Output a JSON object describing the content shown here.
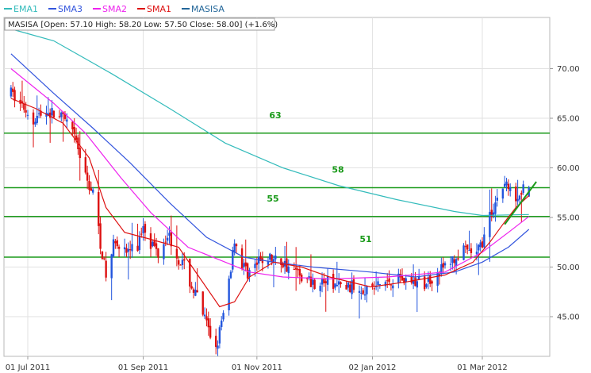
{
  "legend": [
    {
      "label": "EMA1",
      "color": "#33bbbb"
    },
    {
      "label": "SMA3",
      "color": "#3355dd"
    },
    {
      "label": "SMA2",
      "color": "#ee22ee"
    },
    {
      "label": "SMA1",
      "color": "#dd1111"
    },
    {
      "label": "MASISA",
      "color": "#226699"
    }
  ],
  "info_box": {
    "text": "MASISA [Open: 57.10  High: 58.20  Low: 57.50  Close: 58.00] (+1.6%)"
  },
  "chart_data": {
    "type": "candlestick",
    "symbol": "MASISA",
    "ylim": [
      41,
      76
    ],
    "y_ticks": [
      "45.00",
      "50.00",
      "55.00",
      "60.00",
      "65.00",
      "70.00"
    ],
    "x_ticks": [
      "01 Jul 2011",
      "01 Sep 2011",
      "01 Nov 2011",
      "02 Jan 2012",
      "01 Mar 2012"
    ],
    "date_range": [
      "2011-06-22",
      "2012-03-26"
    ],
    "last_bar": {
      "open": 57.1,
      "high": 58.2,
      "low": 57.5,
      "close": 58.0,
      "change_pct": 1.6
    },
    "horizontal_levels": [
      {
        "label": "63",
        "value": 63.5,
        "color": "#1a9a1a"
      },
      {
        "label": "58",
        "value": 58.0,
        "color": "#1a9a1a"
      },
      {
        "label": "55",
        "value": 55.1,
        "color": "#1a9a1a"
      },
      {
        "label": "51",
        "value": 51.0,
        "color": "#1a9a1a"
      }
    ],
    "trendline": {
      "start": [
        "2012-03-13",
        54.3
      ],
      "end": [
        "2012-03-30",
        58.6
      ],
      "color": "#1a9a1a"
    },
    "price_path": [
      [
        "2011-06-22",
        67.5
      ],
      [
        "2011-06-28",
        66.3
      ],
      [
        "2011-07-04",
        65.0
      ],
      [
        "2011-07-11",
        65.7
      ],
      [
        "2011-07-18",
        65.2
      ],
      [
        "2011-07-22",
        64.5
      ],
      [
        "2011-07-27",
        62.5
      ],
      [
        "2011-08-01",
        59.0
      ],
      [
        "2011-08-05",
        57.5
      ],
      [
        "2011-08-09",
        52.5
      ],
      [
        "2011-08-12",
        49.0
      ],
      [
        "2011-08-17",
        53.0
      ],
      [
        "2011-08-22",
        51.5
      ],
      [
        "2011-08-29",
        52.0
      ],
      [
        "2011-09-01",
        54.5
      ],
      [
        "2011-09-05",
        52.5
      ],
      [
        "2011-09-09",
        51.5
      ],
      [
        "2011-09-14",
        53.5
      ],
      [
        "2011-09-19",
        51.2
      ],
      [
        "2011-09-23",
        50.0
      ],
      [
        "2011-09-27",
        48.0
      ],
      [
        "2011-10-01",
        46.5
      ],
      [
        "2011-10-06",
        43.5
      ],
      [
        "2011-10-10",
        42.0
      ],
      [
        "2011-10-14",
        45.0
      ],
      [
        "2011-10-18",
        50.0
      ],
      [
        "2011-10-20",
        53.0
      ],
      [
        "2011-10-23",
        50.5
      ],
      [
        "2011-10-27",
        49.5
      ],
      [
        "2011-11-01",
        50.2
      ],
      [
        "2011-11-06",
        51.0
      ],
      [
        "2011-11-14",
        50.5
      ],
      [
        "2011-11-22",
        49.5
      ],
      [
        "2011-11-30",
        48.5
      ],
      [
        "2011-12-08",
        48.5
      ],
      [
        "2011-12-16",
        48.0
      ],
      [
        "2011-12-25",
        48.0
      ],
      [
        "2012-01-02",
        47.8
      ],
      [
        "2012-01-09",
        48.5
      ],
      [
        "2012-01-16",
        49.0
      ],
      [
        "2012-01-23",
        48.5
      ],
      [
        "2012-01-30",
        48.3
      ],
      [
        "2012-02-06",
        49.5
      ],
      [
        "2012-02-13",
        50.5
      ],
      [
        "2012-02-20",
        51.5
      ],
      [
        "2012-02-27",
        51.3
      ],
      [
        "2012-03-02",
        53.0
      ],
      [
        "2012-03-05",
        55.0
      ],
      [
        "2012-03-08",
        56.5
      ],
      [
        "2012-03-11",
        58.0
      ],
      [
        "2012-03-14",
        58.5
      ],
      [
        "2012-03-17",
        57.0
      ],
      [
        "2012-03-20",
        57.5
      ],
      [
        "2012-03-23",
        57.8
      ],
      [
        "2012-03-26",
        58.0
      ]
    ],
    "series": [
      {
        "name": "EMA1",
        "color": "#33bbbb",
        "points": [
          [
            "2011-06-22",
            74.0
          ],
          [
            "2011-07-15",
            72.8
          ],
          [
            "2011-08-15",
            69.5
          ],
          [
            "2011-09-15",
            66.0
          ],
          [
            "2011-10-15",
            62.5
          ],
          [
            "2011-11-15",
            60.0
          ],
          [
            "2011-12-15",
            58.2
          ],
          [
            "2012-01-15",
            56.8
          ],
          [
            "2012-02-15",
            55.6
          ],
          [
            "2012-03-01",
            55.2
          ],
          [
            "2012-03-26",
            55.3
          ]
        ]
      },
      {
        "name": "SMA3",
        "color": "#3355dd",
        "points": [
          [
            "2011-06-22",
            71.5
          ],
          [
            "2011-07-15",
            67.5
          ],
          [
            "2011-08-05",
            64.0
          ],
          [
            "2011-08-25",
            60.5
          ],
          [
            "2011-09-15",
            56.5
          ],
          [
            "2011-10-05",
            53.0
          ],
          [
            "2011-10-25",
            51.0
          ],
          [
            "2011-11-10",
            50.5
          ],
          [
            "2011-12-01",
            50.0
          ],
          [
            "2012-01-01",
            49.5
          ],
          [
            "2012-01-25",
            49.0
          ],
          [
            "2012-02-15",
            49.5
          ],
          [
            "2012-03-01",
            50.5
          ],
          [
            "2012-03-15",
            52.0
          ],
          [
            "2012-03-26",
            53.8
          ]
        ]
      },
      {
        "name": "SMA2",
        "color": "#ee22ee",
        "points": [
          [
            "2011-06-22",
            70.0
          ],
          [
            "2011-07-15",
            66.5
          ],
          [
            "2011-08-01",
            63.5
          ],
          [
            "2011-08-20",
            59.0
          ],
          [
            "2011-09-05",
            55.5
          ],
          [
            "2011-09-25",
            52.0
          ],
          [
            "2011-10-15",
            50.5
          ],
          [
            "2011-10-28",
            49.5
          ],
          [
            "2011-11-15",
            49.0
          ],
          [
            "2011-12-10",
            48.8
          ],
          [
            "2012-01-10",
            49.0
          ],
          [
            "2012-02-10",
            49.5
          ],
          [
            "2012-03-01",
            51.5
          ],
          [
            "2012-03-15",
            53.5
          ],
          [
            "2012-03-26",
            55.1
          ]
        ]
      },
      {
        "name": "SMA1",
        "color": "#dd1111",
        "points": [
          [
            "2011-06-22",
            67.0
          ],
          [
            "2011-07-05",
            66.0
          ],
          [
            "2011-07-20",
            64.5
          ],
          [
            "2011-08-03",
            61.0
          ],
          [
            "2011-08-12",
            56.0
          ],
          [
            "2011-08-22",
            53.5
          ],
          [
            "2011-09-05",
            52.8
          ],
          [
            "2011-09-20",
            52.0
          ],
          [
            "2011-10-01",
            49.0
          ],
          [
            "2011-10-12",
            46.0
          ],
          [
            "2011-10-20",
            46.5
          ],
          [
            "2011-10-28",
            49.0
          ],
          [
            "2011-11-10",
            50.5
          ],
          [
            "2011-11-25",
            50.0
          ],
          [
            "2011-12-10",
            49.0
          ],
          [
            "2012-01-01",
            48.0
          ],
          [
            "2012-01-20",
            48.5
          ],
          [
            "2012-02-10",
            49.2
          ],
          [
            "2012-02-25",
            50.5
          ],
          [
            "2012-03-05",
            52.5
          ],
          [
            "2012-03-12",
            54.3
          ],
          [
            "2012-03-19",
            56.0
          ],
          [
            "2012-03-26",
            57.2
          ]
        ]
      }
    ]
  }
}
